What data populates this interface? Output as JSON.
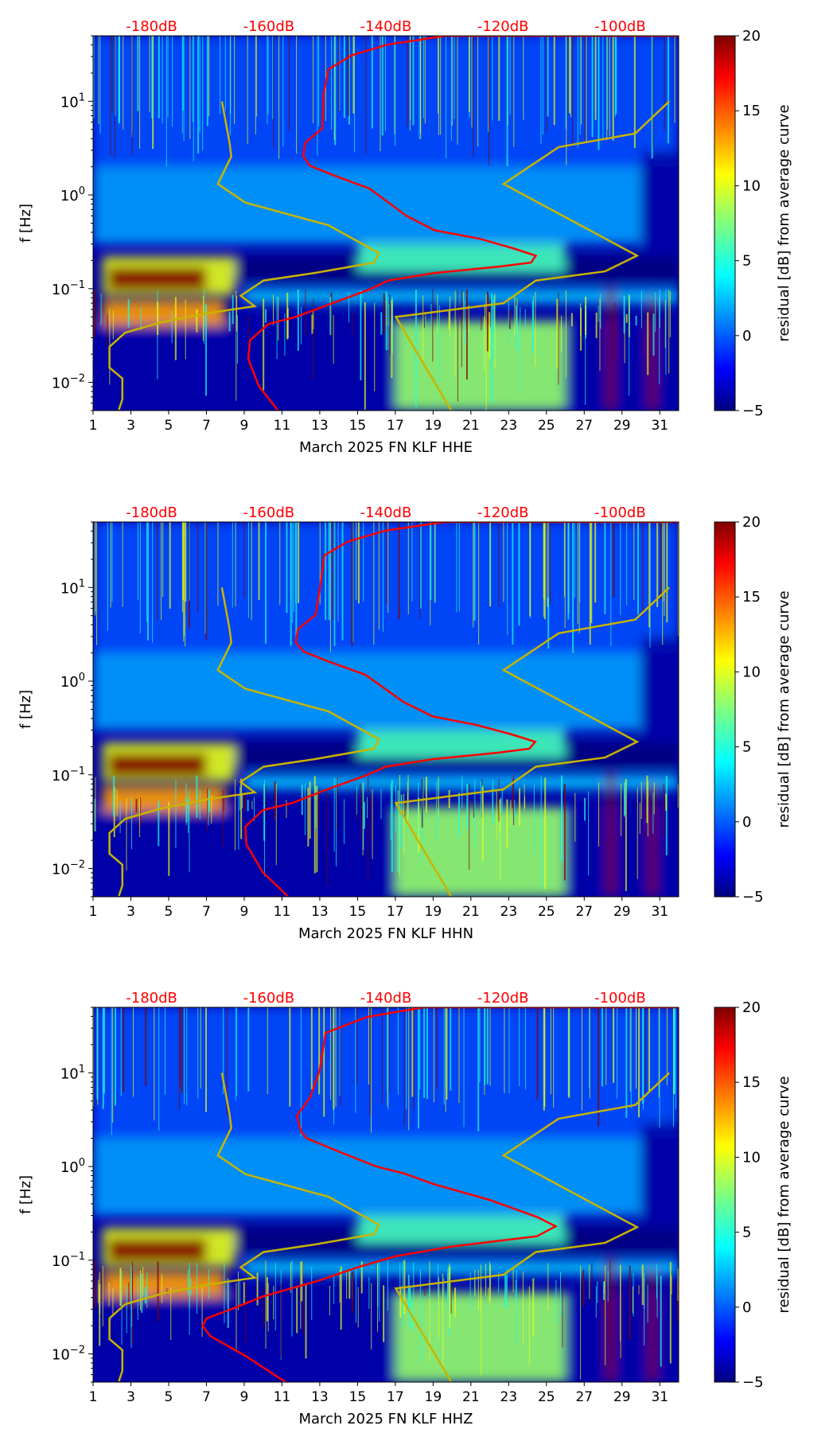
{
  "chart_data": {
    "type": "heatmap",
    "x_axis": {
      "label_prefix": "March 2025 FN KLF",
      "range": [
        1,
        32
      ],
      "ticks": [
        1,
        3,
        5,
        7,
        9,
        11,
        13,
        15,
        17,
        19,
        21,
        23,
        25,
        27,
        29,
        31
      ]
    },
    "top_axis": {
      "range_db": [
        -190,
        -90
      ],
      "ticks": [
        -180,
        -160,
        -140,
        -120,
        -100
      ],
      "tick_labels": [
        "-180dB",
        "-160dB",
        "-140dB",
        "-120dB",
        "-100dB"
      ],
      "color": "#ff0000"
    },
    "y_axis": {
      "label": "f [Hz]",
      "scale": "log",
      "range": [
        0.005,
        50
      ],
      "ticks": [
        10,
        1,
        0.1,
        0.01
      ],
      "tick_labels": [
        "10^1",
        "10^0",
        "10^-1",
        "10^-2"
      ]
    },
    "colorbar": {
      "label": "residual [dB] from average curve",
      "range": [
        -5,
        20
      ],
      "ticks": [
        20,
        15,
        10,
        5,
        0,
        -5
      ],
      "tick_labels": [
        "20",
        "15",
        "10",
        "5",
        "0",
        "−5"
      ],
      "colormap": "jet"
    },
    "model_curves": {
      "color": "#c8b400",
      "low_noise_model": [
        [
          10,
          -168
        ],
        [
          3.62,
          -166.7
        ],
        [
          2.58,
          -166.4
        ],
        [
          1.31,
          -168.7
        ],
        [
          0.83,
          -164
        ],
        [
          0.475,
          -149.8
        ],
        [
          0.24,
          -141.2
        ],
        [
          0.19,
          -142
        ],
        [
          0.147,
          -152.2
        ],
        [
          0.122,
          -160.9
        ],
        [
          0.084,
          -164.8
        ],
        [
          0.065,
          -162.4
        ],
        [
          0.055,
          -170.3
        ],
        [
          0.044,
          -178.2
        ],
        [
          0.034,
          -184.5
        ],
        [
          0.024,
          -187.2
        ],
        [
          0.0144,
          -187.2
        ],
        [
          0.011,
          -185
        ],
        [
          0.0066,
          -185
        ],
        [
          0.0051,
          -185.6
        ]
      ],
      "high_noise_model": [
        [
          10,
          -91.6
        ],
        [
          4.54,
          -97.4
        ],
        [
          3.24,
          -110.5
        ],
        [
          1.31,
          -119.9
        ],
        [
          0.225,
          -97.1
        ],
        [
          0.153,
          -102.6
        ],
        [
          0.122,
          -114.4
        ],
        [
          0.07,
          -119.9
        ],
        [
          0.05,
          -138.3
        ],
        [
          0.0051,
          -128.9
        ]
      ]
    },
    "residual_features": [
      {
        "days": [
          1,
          32
        ],
        "freq": [
          2,
          50
        ],
        "residual": 0
      },
      {
        "days": [
          1,
          30
        ],
        "freq": [
          0.3,
          2
        ],
        "residual": 2
      },
      {
        "days": [
          30,
          32
        ],
        "freq": [
          0.2,
          3
        ],
        "residual": -4
      },
      {
        "days": [
          8.5,
          32
        ],
        "freq": [
          0.12,
          0.22
        ],
        "residual": -5
      },
      {
        "days": [
          1,
          32
        ],
        "freq": [
          0.005,
          0.045
        ],
        "residual": -4
      },
      {
        "days": [
          1.5,
          8.5
        ],
        "freq": [
          0.085,
          0.22
        ],
        "residual": 10
      },
      {
        "days": [
          1.8,
          7
        ],
        "freq": [
          0.095,
          0.17
        ],
        "residual": 20
      },
      {
        "days": [
          1.5,
          8
        ],
        "freq": [
          0.04,
          0.075
        ],
        "residual": 13
      },
      {
        "days": [
          17,
          26
        ],
        "freq": [
          0.005,
          0.045
        ],
        "residual": 8
      },
      {
        "days": [
          9,
          32
        ],
        "freq": [
          0.07,
          0.1
        ],
        "residual": 3
      },
      {
        "days": [
          15,
          26
        ],
        "freq": [
          0.15,
          0.3
        ],
        "residual": 6
      },
      {
        "days": [
          28.2,
          28.6
        ],
        "freq": [
          0.005,
          0.1
        ],
        "residual": 20
      },
      {
        "days": [
          30.4,
          30.8
        ],
        "freq": [
          0.005,
          0.08
        ],
        "residual": 20
      }
    ],
    "panels": [
      {
        "channel": "HHE",
        "xlabel": "March 2025 FN KLF  HHE",
        "mean_psd": [
          [
            50,
            -90
          ],
          [
            50,
            -130
          ],
          [
            45.4,
            -134.1
          ],
          [
            40.5,
            -139.6
          ],
          [
            30.9,
            -145.9
          ],
          [
            22,
            -149.8
          ],
          [
            12.5,
            -150.6
          ],
          [
            5.1,
            -150.9
          ],
          [
            3.6,
            -153.8
          ],
          [
            2.6,
            -154.1
          ],
          [
            2.06,
            -153
          ],
          [
            1.64,
            -149.1
          ],
          [
            1.17,
            -142.8
          ],
          [
            0.6,
            -136.5
          ],
          [
            0.42,
            -131.7
          ],
          [
            0.34,
            -123.9
          ],
          [
            0.27,
            -118.3
          ],
          [
            0.225,
            -114.4
          ],
          [
            0.19,
            -115.2
          ],
          [
            0.172,
            -120.7
          ],
          [
            0.147,
            -131.7
          ],
          [
            0.122,
            -139.6
          ],
          [
            0.098,
            -142.8
          ],
          [
            0.07,
            -149.1
          ],
          [
            0.05,
            -155.4
          ],
          [
            0.042,
            -160.1
          ],
          [
            0.028,
            -163.2
          ],
          [
            0.018,
            -163.5
          ],
          [
            0.0091,
            -161.7
          ],
          [
            0.0051,
            -158.5
          ]
        ]
      },
      {
        "channel": "HHN",
        "xlabel": "March 2025 FN KLF  HHN",
        "mean_psd": [
          [
            50,
            -90
          ],
          [
            50,
            -130
          ],
          [
            45.4,
            -134.5
          ],
          [
            40.5,
            -140
          ],
          [
            30.9,
            -146.5
          ],
          [
            22,
            -150.5
          ],
          [
            12.5,
            -151
          ],
          [
            5.1,
            -152
          ],
          [
            3.6,
            -155
          ],
          [
            2.6,
            -155.4
          ],
          [
            2.06,
            -154
          ],
          [
            1.64,
            -150
          ],
          [
            1.17,
            -143.5
          ],
          [
            0.6,
            -137
          ],
          [
            0.42,
            -132
          ],
          [
            0.34,
            -124.5
          ],
          [
            0.27,
            -118.5
          ],
          [
            0.225,
            -114.5
          ],
          [
            0.19,
            -115.5
          ],
          [
            0.172,
            -121
          ],
          [
            0.147,
            -132
          ],
          [
            0.122,
            -140
          ],
          [
            0.098,
            -143.5
          ],
          [
            0.07,
            -150
          ],
          [
            0.05,
            -156
          ],
          [
            0.042,
            -161
          ],
          [
            0.028,
            -164
          ],
          [
            0.018,
            -163.8
          ],
          [
            0.0091,
            -161
          ],
          [
            0.0051,
            -156.8
          ]
        ]
      },
      {
        "channel": "HHZ",
        "xlabel": "March 2025 FN KLF  HHZ",
        "mean_psd": [
          [
            50,
            -90
          ],
          [
            50,
            -133.5
          ],
          [
            39.5,
            -143.2
          ],
          [
            26.7,
            -150.3
          ],
          [
            10.7,
            -151.3
          ],
          [
            5.5,
            -152.9
          ],
          [
            3.5,
            -155.2
          ],
          [
            2.37,
            -154.5
          ],
          [
            2,
            -153.5
          ],
          [
            1.45,
            -148.1
          ],
          [
            1,
            -141.6
          ],
          [
            0.84,
            -136.8
          ],
          [
            0.65,
            -131.9
          ],
          [
            0.44,
            -122.3
          ],
          [
            0.29,
            -114.2
          ],
          [
            0.23,
            -111
          ],
          [
            0.18,
            -114.2
          ],
          [
            0.14,
            -128.7
          ],
          [
            0.11,
            -138.4
          ],
          [
            0.084,
            -144.8
          ],
          [
            0.061,
            -151.3
          ],
          [
            0.041,
            -161
          ],
          [
            0.031,
            -165.8
          ],
          [
            0.024,
            -170.6
          ],
          [
            0.02,
            -171.3
          ],
          [
            0.0155,
            -170
          ],
          [
            0.0097,
            -164.2
          ],
          [
            0.005,
            -157.1
          ]
        ]
      }
    ]
  }
}
